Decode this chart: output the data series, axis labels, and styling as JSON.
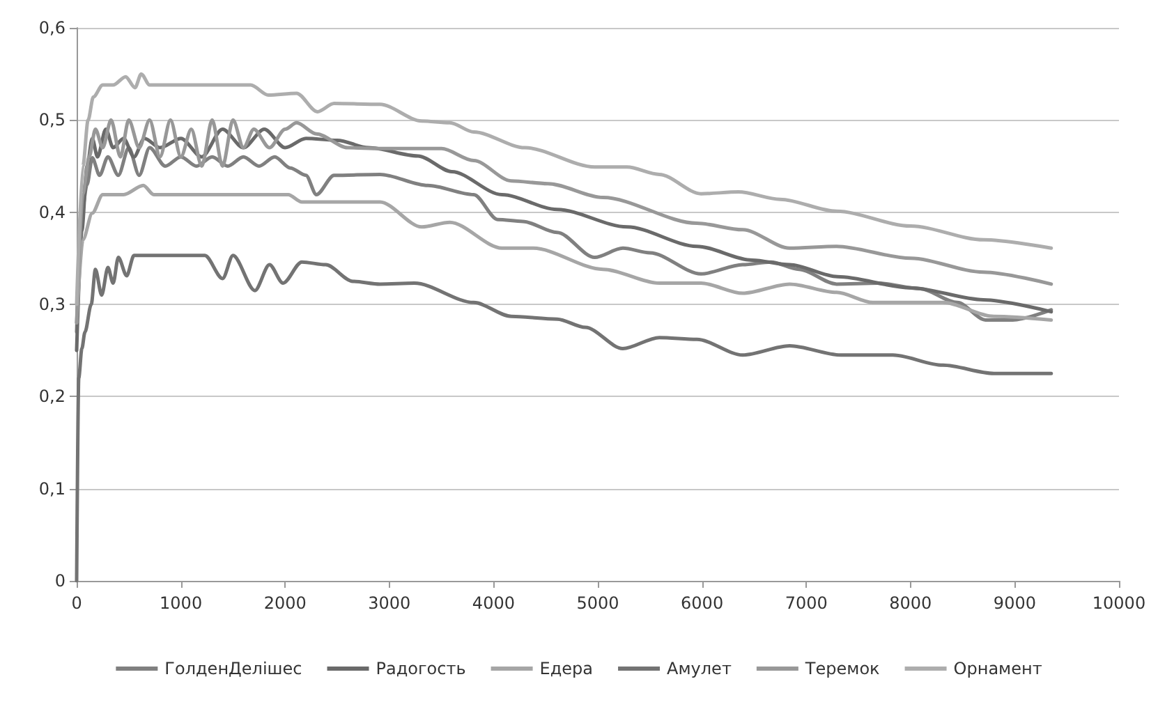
{
  "chart_data": {
    "type": "line",
    "xlim": [
      0,
      10000
    ],
    "xticks": [
      0,
      1000,
      2000,
      3000,
      4000,
      5000,
      6000,
      7000,
      8000,
      9000,
      10000
    ],
    "ylim": [
      0,
      0.6
    ],
    "yticks": [
      {
        "value": 0,
        "label": "0"
      },
      {
        "value": 0.1,
        "label": "0,1"
      },
      {
        "value": 0.2,
        "label": "0,2"
      },
      {
        "value": 0.3,
        "label": "0,3"
      },
      {
        "value": 0.4,
        "label": "0,4"
      },
      {
        "value": 0.5,
        "label": "0,5"
      },
      {
        "value": 0.6,
        "label": "0,6"
      }
    ],
    "grid": "y",
    "legend": "bottom",
    "marker": "none",
    "line_style": "solid",
    "series": [
      {
        "name": "ГолденДелішес",
        "color": "#808080",
        "x": [
          0,
          50,
          100,
          150,
          220,
          300,
          400,
          500,
          600,
          700,
          850,
          1000,
          1150,
          1300,
          1450,
          1600,
          1750,
          1900,
          2050,
          2200,
          2300,
          2470,
          2910,
          3370,
          3810,
          4040,
          4280,
          4610,
          4970,
          5240,
          5500,
          5990,
          6390,
          6660,
          6930,
          7290,
          7690,
          8090,
          8450,
          8720,
          8980,
          9350
        ],
        "values": [
          0.27,
          0.4,
          0.43,
          0.459,
          0.44,
          0.46,
          0.44,
          0.47,
          0.44,
          0.47,
          0.45,
          0.46,
          0.45,
          0.46,
          0.45,
          0.46,
          0.45,
          0.46,
          0.448,
          0.44,
          0.419,
          0.44,
          0.441,
          0.429,
          0.419,
          0.392,
          0.39,
          0.378,
          0.351,
          0.361,
          0.356,
          0.333,
          0.343,
          0.346,
          0.338,
          0.322,
          0.323,
          0.317,
          0.302,
          0.283,
          0.283,
          0.294
        ]
      },
      {
        "name": "Радогость",
        "color": "#6a6a6a",
        "x": [
          0,
          50,
          100,
          150,
          200,
          280,
          350,
          450,
          550,
          650,
          800,
          1000,
          1200,
          1400,
          1600,
          1800,
          2000,
          2200,
          2500,
          2800,
          3275,
          3600,
          4080,
          4610,
          5280,
          5950,
          6480,
          6840,
          7300,
          8000,
          8700,
          9350
        ],
        "values": [
          0.25,
          0.38,
          0.45,
          0.48,
          0.46,
          0.49,
          0.47,
          0.48,
          0.46,
          0.48,
          0.47,
          0.48,
          0.46,
          0.49,
          0.47,
          0.49,
          0.47,
          0.48,
          0.478,
          0.47,
          0.461,
          0.444,
          0.419,
          0.403,
          0.384,
          0.363,
          0.348,
          0.343,
          0.33,
          0.318,
          0.305,
          0.292
        ]
      },
      {
        "name": "Едера",
        "color": "#a6a6a6",
        "x": [
          0,
          60,
          150,
          250,
          450,
          640,
          740,
          1000,
          2030,
          2160,
          2910,
          3310,
          3580,
          4080,
          4380,
          5050,
          5590,
          5990,
          6390,
          6840,
          7290,
          7640,
          8310,
          8800,
          9350
        ],
        "values": [
          0.28,
          0.37,
          0.399,
          0.419,
          0.419,
          0.429,
          0.419,
          0.419,
          0.419,
          0.411,
          0.411,
          0.384,
          0.389,
          0.361,
          0.361,
          0.338,
          0.323,
          0.323,
          0.312,
          0.322,
          0.313,
          0.302,
          0.302,
          0.287,
          0.283
        ]
      },
      {
        "name": "Амулет",
        "color": "#737373",
        "x": [
          0,
          20,
          50,
          80,
          140,
          180,
          240,
          300,
          350,
          400,
          480,
          550,
          750,
          1000,
          1230,
          1400,
          1500,
          1710,
          1850,
          1980,
          2160,
          2390,
          2650,
          2910,
          3240,
          3810,
          4170,
          4610,
          4880,
          5240,
          5590,
          5950,
          6390,
          6840,
          7330,
          7830,
          8310,
          8800,
          9350
        ],
        "values": [
          0,
          0.22,
          0.252,
          0.27,
          0.3,
          0.338,
          0.31,
          0.34,
          0.323,
          0.351,
          0.331,
          0.353,
          0.353,
          0.353,
          0.353,
          0.328,
          0.353,
          0.315,
          0.343,
          0.323,
          0.346,
          0.343,
          0.325,
          0.322,
          0.323,
          0.302,
          0.287,
          0.284,
          0.275,
          0.252,
          0.264,
          0.262,
          0.245,
          0.255,
          0.245,
          0.245,
          0.234,
          0.225,
          0.225
        ]
      },
      {
        "name": "Теремок",
        "color": "#989898",
        "x": [
          0,
          60,
          120,
          180,
          250,
          330,
          420,
          500,
          600,
          700,
          800,
          900,
          1000,
          1100,
          1200,
          1300,
          1400,
          1500,
          1600,
          1700,
          1850,
          2000,
          2110,
          2300,
          2600,
          2910,
          3500,
          3810,
          4170,
          4520,
          5050,
          5950,
          6390,
          6840,
          7290,
          8000,
          8700,
          9350
        ],
        "values": [
          0.28,
          0.42,
          0.46,
          0.49,
          0.47,
          0.5,
          0.46,
          0.5,
          0.47,
          0.5,
          0.46,
          0.5,
          0.46,
          0.49,
          0.45,
          0.5,
          0.45,
          0.5,
          0.47,
          0.49,
          0.47,
          0.49,
          0.497,
          0.485,
          0.47,
          0.469,
          0.469,
          0.456,
          0.434,
          0.431,
          0.416,
          0.388,
          0.381,
          0.361,
          0.363,
          0.35,
          0.335,
          0.322
        ]
      },
      {
        "name": "Орнамент",
        "color": "#adadad",
        "x": [
          0,
          60,
          110,
          160,
          250,
          350,
          470,
          560,
          620,
          700,
          1000,
          1670,
          1840,
          2110,
          2310,
          2470,
          2910,
          3310,
          3580,
          3810,
          4300,
          4970,
          5280,
          5590,
          5990,
          6350,
          6750,
          7290,
          8000,
          8700,
          9350
        ],
        "values": [
          0.3,
          0.45,
          0.5,
          0.525,
          0.538,
          0.538,
          0.547,
          0.535,
          0.55,
          0.538,
          0.538,
          0.538,
          0.527,
          0.529,
          0.509,
          0.518,
          0.517,
          0.499,
          0.497,
          0.487,
          0.47,
          0.449,
          0.449,
          0.441,
          0.42,
          0.422,
          0.414,
          0.401,
          0.385,
          0.37,
          0.361
        ]
      }
    ]
  }
}
